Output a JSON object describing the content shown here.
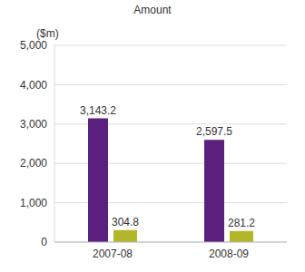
{
  "chart_data": {
    "type": "bar",
    "title": "Amount",
    "y_label": "($m)",
    "categories": [
      "2007-08",
      "2008-09"
    ],
    "series": [
      {
        "color": "#5b1f7e",
        "values": [
          3143.2,
          2597.5
        ],
        "value_labels": [
          "3,143.2",
          "2,597.5"
        ]
      },
      {
        "color": "#b4b62a",
        "values": [
          304.8,
          281.2
        ],
        "value_labels": [
          "304.8",
          "281.2"
        ]
      }
    ],
    "ylim": [
      0,
      5000
    ],
    "yticks": [
      0,
      {
        "value": 1000,
        "label": "1,000"
      },
      {
        "value": 2000,
        "label": "2,000"
      },
      {
        "value": 3000,
        "label": "3,000"
      },
      {
        "value": 4000,
        "label": "4,000"
      },
      {
        "value": 5000,
        "label": "5,000"
      }
    ],
    "grid": true,
    "data_labels": true
  }
}
